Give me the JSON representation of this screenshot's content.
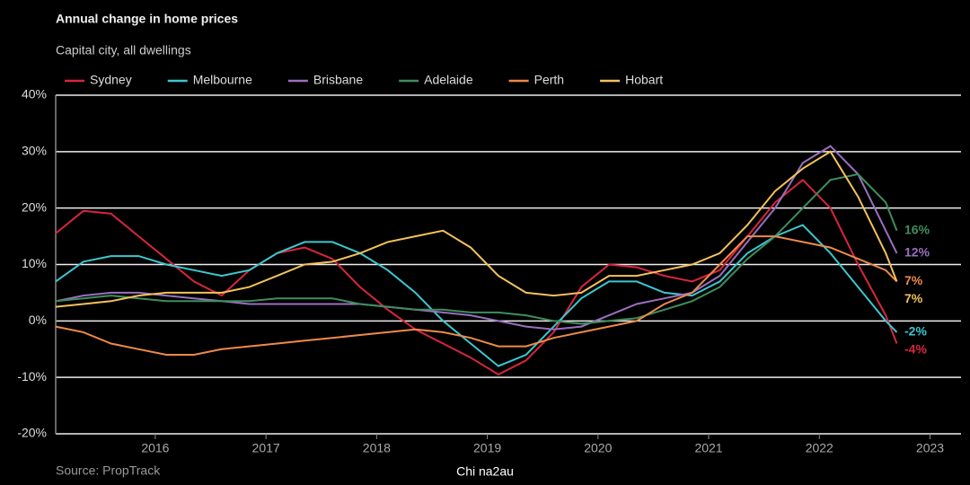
{
  "chart_data": {
    "type": "line",
    "title": "Annual change in home prices",
    "subtitle": "Capital city, all dwellings",
    "source": "Source: PropTrack",
    "watermark": "Chi na2au",
    "x": [
      2015.1,
      2015.35,
      2015.6,
      2015.85,
      2016.1,
      2016.35,
      2016.6,
      2016.85,
      2017.1,
      2017.35,
      2017.6,
      2017.85,
      2018.1,
      2018.35,
      2018.6,
      2018.85,
      2019.1,
      2019.35,
      2019.6,
      2019.85,
      2020.1,
      2020.35,
      2020.6,
      2020.85,
      2021.1,
      2021.35,
      2021.6,
      2021.85,
      2022.1,
      2022.35,
      2022.6,
      2022.7
    ],
    "series": [
      {
        "name": "Sydney",
        "color": "#d7263d",
        "end_label": "-4%",
        "values": [
          15.5,
          19.5,
          19,
          15,
          11,
          7,
          4.5,
          9,
          12,
          13,
          11,
          6,
          2,
          -1.5,
          -4,
          -6.5,
          -9.5,
          -7,
          -2,
          6,
          10,
          9.5,
          8,
          7,
          9,
          15,
          21,
          25,
          20,
          10,
          1,
          -4
        ]
      },
      {
        "name": "Melbourne",
        "color": "#3cc7d0",
        "end_label": "-2%",
        "values": [
          7,
          10.5,
          11.5,
          11.5,
          10,
          9,
          8,
          9,
          12,
          14,
          14,
          12,
          9,
          5,
          0,
          -4,
          -8,
          -6,
          -1,
          4,
          7,
          7,
          5,
          4.5,
          7,
          12,
          15,
          17,
          12,
          6,
          0,
          -2
        ]
      },
      {
        "name": "Brisbane",
        "color": "#9b6fc0",
        "end_label": "12%",
        "values": [
          3.5,
          4.5,
          5,
          5,
          4.5,
          4,
          3.5,
          3,
          3,
          3,
          3,
          3,
          2.5,
          2,
          1.5,
          1,
          0,
          -1,
          -1.5,
          -1,
          1,
          3,
          4,
          5,
          8,
          14,
          20,
          28,
          31,
          26,
          16,
          12
        ]
      },
      {
        "name": "Adelaide",
        "color": "#3e8e5e",
        "end_label": "16%",
        "values": [
          3.5,
          4,
          4.5,
          4,
          3.5,
          3.5,
          3.5,
          3.5,
          4,
          4,
          4,
          3,
          2.5,
          2,
          2,
          1.5,
          1.5,
          1,
          0,
          -0.5,
          0,
          0.5,
          2,
          3.5,
          6,
          11,
          15,
          20,
          25,
          26,
          21,
          16
        ]
      },
      {
        "name": "Perth",
        "color": "#ee8a4a",
        "end_label": "7%",
        "values": [
          -1,
          -2,
          -4,
          -5,
          -6,
          -6,
          -5,
          -4.5,
          -4,
          -3.5,
          -3,
          -2.5,
          -2,
          -1.5,
          -2,
          -3,
          -4.5,
          -4.5,
          -3,
          -2,
          -1,
          0,
          3,
          5,
          10,
          15,
          15,
          14,
          13,
          11,
          9,
          7
        ]
      },
      {
        "name": "Hobart",
        "color": "#f4c25a",
        "end_label": "7%",
        "values": [
          2.5,
          3,
          3.5,
          4.5,
          5,
          5,
          5,
          6,
          8,
          10,
          10.5,
          12,
          14,
          15,
          16,
          13,
          8,
          5,
          4.5,
          5,
          8,
          8,
          9,
          10,
          12,
          17,
          23,
          27,
          30,
          22,
          12,
          7
        ]
      }
    ],
    "xlim": [
      2015.1,
      2023.28
    ],
    "xticks": [
      2016,
      2017,
      2018,
      2019,
      2020,
      2021,
      2022,
      2023
    ],
    "ylim": [
      -20,
      40
    ],
    "yticks": [
      {
        "value": -20,
        "label": "-20%"
      },
      {
        "value": -10,
        "label": "-10%"
      },
      {
        "value": 0,
        "label": "0%"
      },
      {
        "value": 10,
        "label": "10%"
      },
      {
        "value": 20,
        "label": "20%"
      },
      {
        "value": 30,
        "label": "30%"
      },
      {
        "value": 40,
        "label": "40%"
      }
    ],
    "grid": true
  }
}
